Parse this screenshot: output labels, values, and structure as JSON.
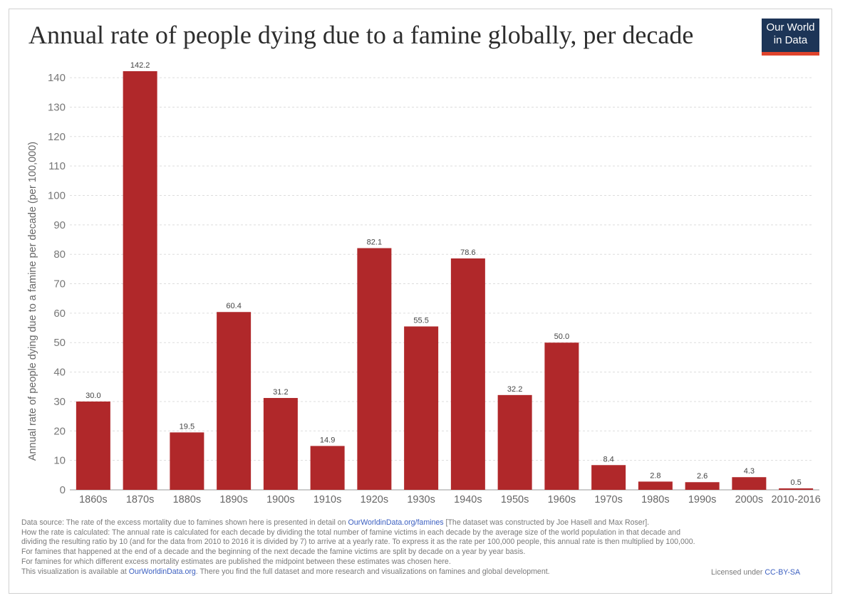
{
  "header": {
    "title": "Annual rate of people dying due to a famine globally, per decade",
    "logo_line1": "Our World",
    "logo_line2": "in Data"
  },
  "colors": {
    "bar": "#b0282a",
    "grid": "#dddddd",
    "text": "#666666",
    "logo_bg": "#1d3557",
    "logo_accent": "#e0442c"
  },
  "chart_data": {
    "type": "bar",
    "title": "Annual rate of people dying due to a famine globally, per decade",
    "xlabel": "",
    "ylabel": "Annual rate of people dying due to a famine per decade (per 100,000)",
    "ylim": [
      0,
      142.2
    ],
    "yticks": [
      0,
      10,
      20,
      30,
      40,
      50,
      60,
      70,
      80,
      90,
      100,
      110,
      120,
      130,
      140
    ],
    "grid": true,
    "categories": [
      "1860s",
      "1870s",
      "1880s",
      "1890s",
      "1900s",
      "1910s",
      "1920s",
      "1930s",
      "1940s",
      "1950s",
      "1960s",
      "1970s",
      "1980s",
      "1990s",
      "2000s",
      "2010-2016"
    ],
    "values": [
      30.0,
      142.2,
      19.5,
      60.4,
      31.2,
      14.9,
      82.1,
      55.5,
      78.6,
      32.2,
      50.0,
      8.4,
      2.8,
      2.6,
      4.3,
      0.5
    ],
    "labels": [
      "30.0",
      "142.2",
      "19.5",
      "60.4",
      "31.2",
      "14.9",
      "82.1",
      "55.5",
      "78.6",
      "32.2",
      "50.0",
      "8.4",
      "2.8",
      "2.6",
      "4.3",
      "0.5"
    ]
  },
  "footer": {
    "source_prefix": "Data source: The rate of the excess mortality due to famines shown here is presented in detail on ",
    "source_link": "OurWorldinData.org/famines",
    "source_suffix": " [The dataset was constructed by Joe Hasell and Max Roser].",
    "line2": "How the rate is calculated: The annual rate is calculated for each decade by dividing the total number of famine victims in each decade by the average size of the world population in that decade and",
    "line3": "dividing the resulting ratio by 10 (and for the data from 2010 to 2016 it is divided by 7) to arrive at a yearly rate. To express it as the rate per 100,000 people, this annual rate is then multiplied by 100,000.",
    "line4": "For famines that happened at the end of a decade and the beginning of the next decade the famine victims are split by decade on a year by year basis.",
    "line5": "For famines for which different excess mortality estimates are published the midpoint between these estimates was chosen here.",
    "viz_prefix": "This visualization is available at ",
    "viz_link": "OurWorldinData.org",
    "viz_suffix": ". There you find the full dataset and more research and visualizations on famines and global development.",
    "license_prefix": "Licensed under ",
    "license_link": "CC-BY-SA"
  }
}
